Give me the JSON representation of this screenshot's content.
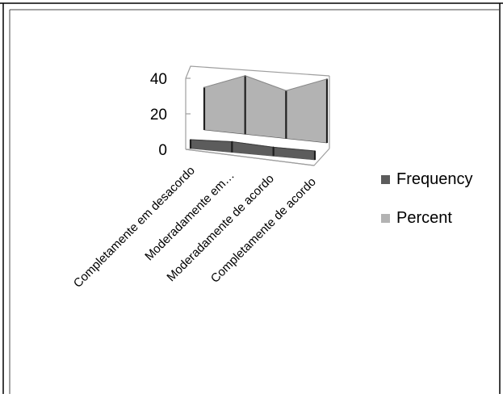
{
  "chart_data": {
    "type": "area",
    "three_d": true,
    "categories": [
      "Completamente em desacordo",
      "Moderadamente em…",
      "Moderadamente de acordo",
      "Completamente de acordo"
    ],
    "series": [
      {
        "name": "Frequency",
        "values": [
          5,
          6,
          5,
          5
        ],
        "color": "#5c5c5c"
      },
      {
        "name": "Percent",
        "values": [
          24,
          33,
          27,
          36
        ],
        "color": "#b3b3b3"
      }
    ],
    "y_ticks": [
      "0",
      "20",
      "40"
    ],
    "ylim": [
      0,
      40
    ],
    "legend_position": "right",
    "grid": true
  }
}
